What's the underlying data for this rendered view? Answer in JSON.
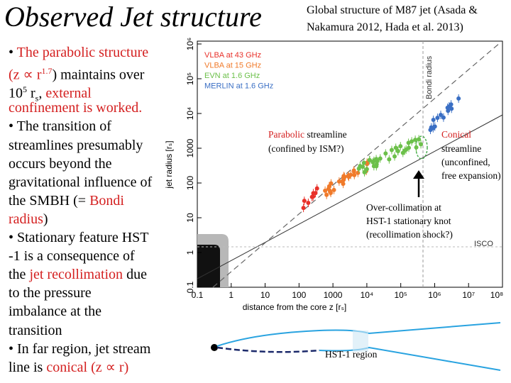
{
  "title": "Observed Jet structure",
  "caption": [
    "Global structure of M87 jet (Asada &",
    "Nakamura 2012, Hada et al. 2013)"
  ],
  "body": [
    [
      {
        "t": "• "
      },
      {
        "t": "The parabolic structure",
        "red": true
      }
    ],
    [
      {
        "t": "(z ∝ r",
        "red": true
      },
      {
        "t": "1.7",
        "red": true,
        "sup": true
      },
      {
        "t": ") maintains over"
      }
    ],
    [
      {
        "t": "10"
      },
      {
        "t": "5",
        "sup": true
      },
      {
        "t": " r"
      },
      {
        "t": "s",
        "sub": true
      },
      {
        "t": ", "
      },
      {
        "t": "external",
        "red": true
      }
    ],
    [
      {
        "t": "confinement is worked.",
        "red": true
      }
    ],
    [
      {
        "t": "• The transition of"
      }
    ],
    [
      {
        "t": "streamlines presumably"
      }
    ],
    [
      {
        "t": "occurs beyond the"
      }
    ],
    [
      {
        "t": "gravitational influence of"
      }
    ],
    [
      {
        "t": "the SMBH (= "
      },
      {
        "t": "Bondi",
        "red": true
      }
    ],
    [
      {
        "t": "radius",
        "red": true
      },
      {
        "t": ")"
      }
    ],
    [
      {
        "t": "• Stationary feature HST"
      }
    ],
    [
      {
        "t": "-1 is a consequence of"
      }
    ],
    [
      {
        "t": "the "
      },
      {
        "t": "jet recollimation",
        "red": true
      },
      {
        "t": " due"
      }
    ],
    [
      {
        "t": "to the pressure"
      }
    ],
    [
      {
        "t": "imbalance at the"
      }
    ],
    [
      {
        "t": "transition"
      }
    ],
    [
      {
        "t": "• In far region, jet stream"
      }
    ],
    [
      {
        "t": "line is "
      },
      {
        "t": "conical (z ∝ r)",
        "red": true
      }
    ]
  ],
  "plot": {
    "xticks": [
      "0.1",
      "1",
      "10",
      "100",
      "1000",
      "10⁴",
      "10⁵",
      "10⁶",
      "10⁷",
      "10⁸"
    ],
    "yticks": [
      "0.1",
      "1",
      "10",
      "100",
      "1000",
      "10⁴",
      "10⁵",
      "10⁶"
    ],
    "xlabel": "distance from the core z [rₛ]",
    "ylabel": "jet radius [rₛ]",
    "legend": [
      {
        "name": "VLBA at 43 GHz",
        "color": "#e8312a"
      },
      {
        "name": "VLBA at 15 GHz",
        "color": "#f07a2a"
      },
      {
        "name": "EVN at 1.6 GHz",
        "color": "#6cc04a"
      },
      {
        "name": "MERLIN at 1.6 GHz",
        "color": "#3a6fc4"
      }
    ],
    "bondi": "Bondi radius",
    "isco": "ISCO"
  },
  "annotations": {
    "parabolic": [
      {
        "t": "Parabolic",
        "red": true
      },
      {
        "t": " streamline"
      }
    ],
    "parabolic_note": "(confined by ISM?)",
    "conical": [
      {
        "t": "Conical",
        "red": true
      }
    ],
    "conical_note": [
      "streamline",
      "(unconfined,",
      "free expansion)"
    ],
    "recollimation": [
      "Over-collimation at",
      "HST-1 stationary knot",
      "(recollimation shock?)"
    ],
    "region": "HST-1 region"
  }
}
